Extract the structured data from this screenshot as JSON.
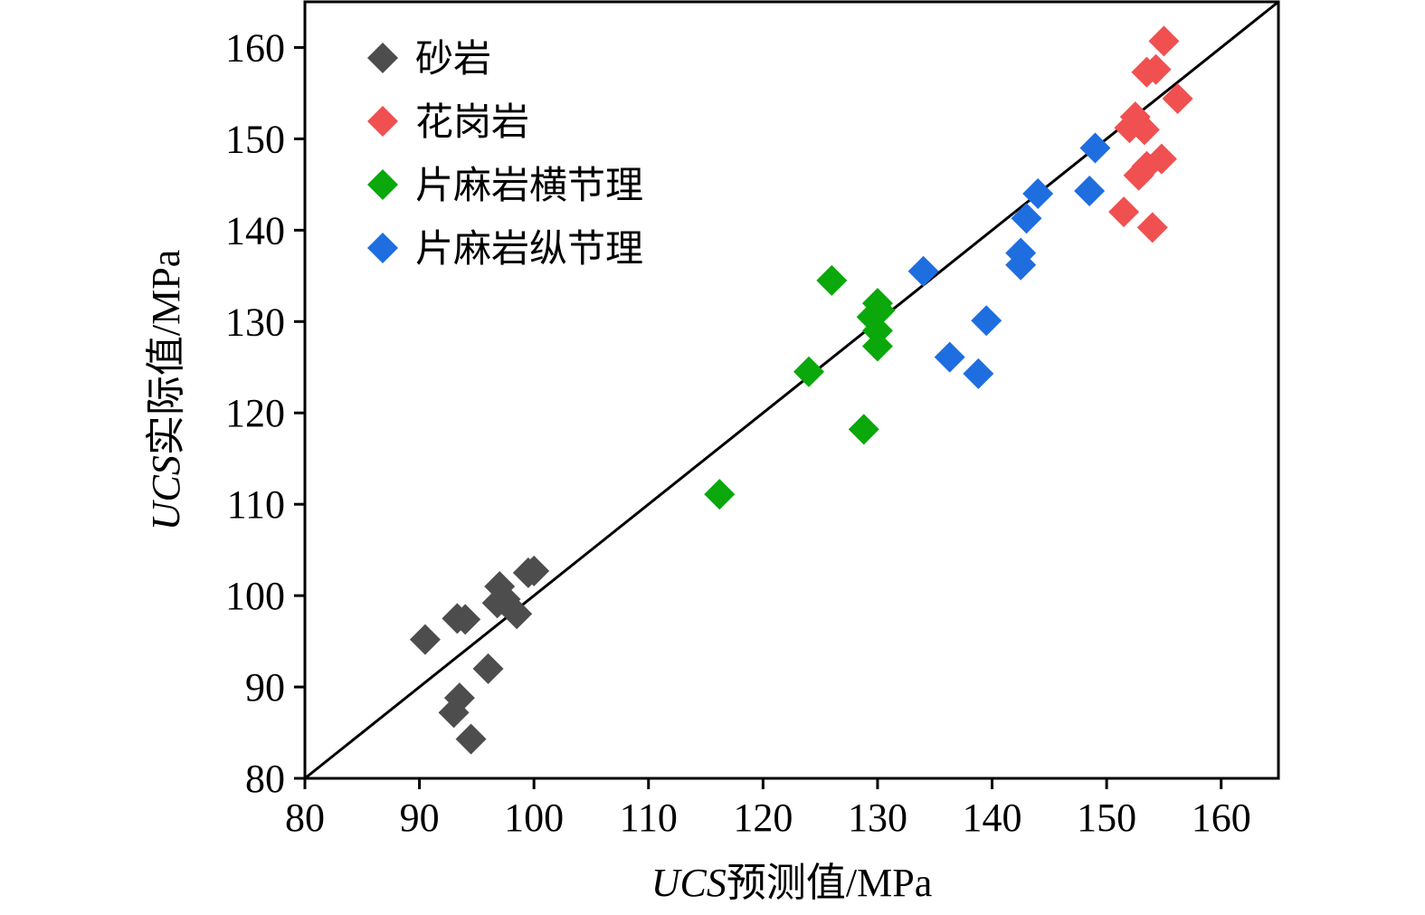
{
  "chart_data": {
    "type": "scatter",
    "xlabel": {
      "italic": "UCS",
      "rest": "预测值/MPa"
    },
    "ylabel": {
      "italic": "UCS",
      "rest": "实际值/MPa"
    },
    "xlim": [
      80,
      165
    ],
    "ylim": [
      80,
      165
    ],
    "xticks": [
      80,
      90,
      100,
      110,
      120,
      130,
      140,
      150,
      160
    ],
    "yticks": [
      80,
      90,
      100,
      110,
      120,
      130,
      140,
      150,
      160
    ],
    "legend_position": "top-left",
    "reference_line": {
      "from": [
        80,
        80
      ],
      "to": [
        165,
        165
      ],
      "color": "#000000"
    },
    "series": [
      {
        "name": "砂岩",
        "color": "#4d4d4d",
        "points": [
          [
            90.5,
            95.2
          ],
          [
            93.3,
            97.5
          ],
          [
            94.0,
            97.4
          ],
          [
            97.0,
            101.0
          ],
          [
            96.8,
            99.2
          ],
          [
            97.5,
            99.6
          ],
          [
            98.5,
            98.0
          ],
          [
            99.5,
            102.5
          ],
          [
            100.0,
            102.7
          ],
          [
            96.0,
            92.0
          ],
          [
            93.5,
            88.8
          ],
          [
            93.0,
            87.2
          ],
          [
            94.5,
            84.3
          ]
        ]
      },
      {
        "name": "花岗岩",
        "color": "#f05050",
        "points": [
          [
            155.0,
            160.7
          ],
          [
            153.5,
            157.3
          ],
          [
            154.3,
            157.6
          ],
          [
            156.2,
            154.4
          ],
          [
            152.0,
            151.2
          ],
          [
            152.5,
            152.4
          ],
          [
            153.3,
            151.0
          ],
          [
            154.8,
            147.8
          ],
          [
            153.5,
            147.0
          ],
          [
            152.8,
            146.0
          ],
          [
            151.5,
            142.0
          ],
          [
            154.0,
            140.3
          ]
        ]
      },
      {
        "name": "片麻岩横节理",
        "color": "#0aa80a",
        "points": [
          [
            126.0,
            134.5
          ],
          [
            130.0,
            132.0
          ],
          [
            129.5,
            130.5
          ],
          [
            130.2,
            131.2
          ],
          [
            130.0,
            129.0
          ],
          [
            130.0,
            127.3
          ],
          [
            124.0,
            124.5
          ],
          [
            128.8,
            118.2
          ],
          [
            116.2,
            111.1
          ]
        ]
      },
      {
        "name": "片麻岩纵节理",
        "color": "#1e6ee0",
        "points": [
          [
            149.0,
            149.0
          ],
          [
            148.5,
            144.3
          ],
          [
            144.0,
            144.0
          ],
          [
            143.0,
            141.3
          ],
          [
            142.5,
            137.5
          ],
          [
            142.5,
            136.2
          ],
          [
            134.0,
            135.5
          ],
          [
            139.5,
            130.1
          ],
          [
            136.3,
            126.1
          ],
          [
            138.8,
            124.3
          ]
        ]
      }
    ]
  }
}
